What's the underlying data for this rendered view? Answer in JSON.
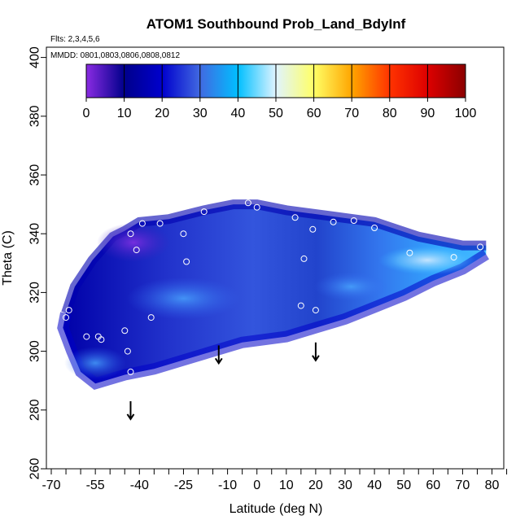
{
  "chart_data": {
    "type": "heatmap",
    "title": "ATOM1 Southbound Prob_Land_BdyInf",
    "subtitle_flights": "Flts: 2,3,4,5,6",
    "subtitle_dates": "MMDD: 0801,0803,0806,0808,0812",
    "xlabel": "Latitude (deg N)",
    "ylabel": "Theta (C)",
    "xlim": [
      -70,
      85
    ],
    "ylim": [
      260,
      405
    ],
    "x_tick_labels": [
      "-70",
      "-55",
      "-40",
      "-25",
      "-10",
      "0",
      "10",
      "20",
      "30",
      "40",
      "50",
      "60",
      "70",
      "80"
    ],
    "y_tick_labels": [
      "260",
      "280",
      "300",
      "320",
      "340",
      "360",
      "380",
      "400"
    ],
    "colorbar": {
      "min": 0,
      "max": 100,
      "tick_labels": [
        "0",
        "10",
        "20",
        "30",
        "40",
        "50",
        "60",
        "70",
        "80",
        "90",
        "100"
      ],
      "colors": [
        "#8a2be2",
        "#00008b",
        "#0000cd",
        "#4169e1",
        "#00bfff",
        "#e0f4ff",
        "#ffff66",
        "#ffa500",
        "#ff0000",
        "#8b0000"
      ]
    },
    "arrows_latitude": [
      -43,
      -13,
      20
    ],
    "observation_points": [
      {
        "lat": -43,
        "theta": 340
      },
      {
        "lat": -39,
        "theta": 343.5
      },
      {
        "lat": -33,
        "theta": 343.5
      },
      {
        "lat": -25,
        "theta": 340
      },
      {
        "lat": -18,
        "theta": 347.5
      },
      {
        "lat": -3,
        "theta": 350.5
      },
      {
        "lat": 0,
        "theta": 349
      },
      {
        "lat": 13,
        "theta": 345.5
      },
      {
        "lat": 19,
        "theta": 341.5
      },
      {
        "lat": 26,
        "theta": 344
      },
      {
        "lat": 33,
        "theta": 344.5
      },
      {
        "lat": 40,
        "theta": 342
      },
      {
        "lat": 52,
        "theta": 333.5
      },
      {
        "lat": 67,
        "theta": 332
      },
      {
        "lat": 76,
        "theta": 335.5
      },
      {
        "lat": -41,
        "theta": 334.5
      },
      {
        "lat": -24,
        "theta": 330.5
      },
      {
        "lat": 16,
        "theta": 331.5
      },
      {
        "lat": -36,
        "theta": 311.5
      },
      {
        "lat": 15,
        "theta": 315.5
      },
      {
        "lat": 20,
        "theta": 314
      },
      {
        "lat": -64,
        "theta": 314
      },
      {
        "lat": -65,
        "theta": 311.5
      },
      {
        "lat": -58,
        "theta": 305
      },
      {
        "lat": -54,
        "theta": 305
      },
      {
        "lat": -53,
        "theta": 304
      },
      {
        "lat": -45,
        "theta": 307
      },
      {
        "lat": -44,
        "theta": 300
      },
      {
        "lat": -43,
        "theta": 293
      }
    ],
    "data_envelope": {
      "top": [
        [
          -65,
          313
        ],
        [
          -62,
          322
        ],
        [
          -56,
          331
        ],
        [
          -49,
          339
        ],
        [
          -45,
          341
        ],
        [
          -40,
          344
        ],
        [
          -30,
          345
        ],
        [
          -18,
          348
        ],
        [
          -8,
          350
        ],
        [
          0,
          350
        ],
        [
          10,
          348
        ],
        [
          25,
          346
        ],
        [
          40,
          344
        ],
        [
          55,
          339
        ],
        [
          70,
          336
        ],
        [
          78,
          336
        ]
      ],
      "bottom": [
        [
          78,
          333
        ],
        [
          70,
          328
        ],
        [
          60,
          324
        ],
        [
          50,
          319
        ],
        [
          40,
          315
        ],
        [
          30,
          311
        ],
        [
          20,
          308
        ],
        [
          10,
          305
        ],
        [
          -5,
          303
        ],
        [
          -15,
          300
        ],
        [
          -25,
          297
        ],
        [
          -35,
          294
        ],
        [
          -45,
          292
        ],
        [
          -55,
          289
        ],
        [
          -60,
          293
        ],
        [
          -63,
          300
        ],
        [
          -66,
          308
        ],
        [
          -65,
          313
        ]
      ]
    }
  }
}
